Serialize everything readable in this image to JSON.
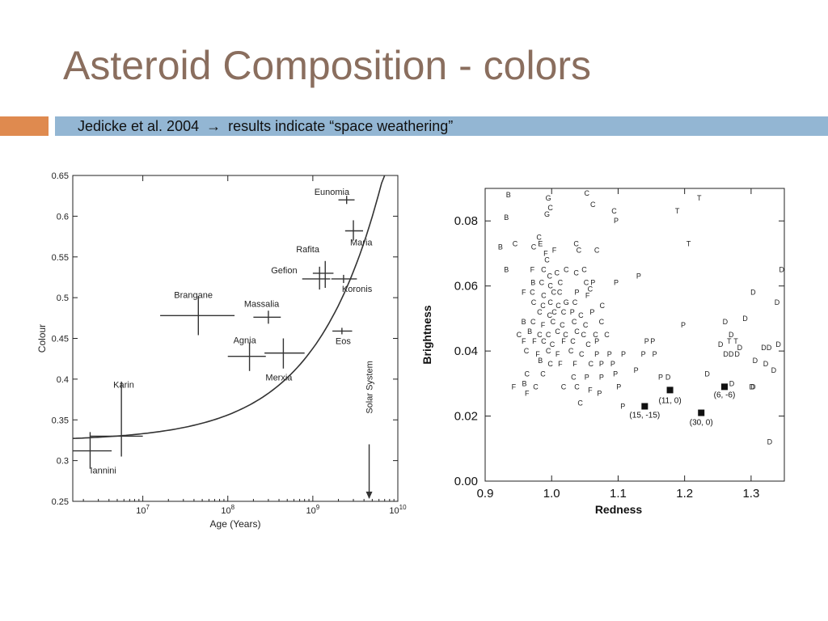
{
  "slide": {
    "title": "Asteroid Composition - colors",
    "subtitle_prefix": "Jedicke et al. 2004",
    "subtitle_arrow": "→",
    "subtitle_suffix": "results indicate “space weathering”",
    "colors": {
      "title": "#8a6e5e",
      "accent_orange": "#df8a4f",
      "accent_blue": "#93b6d3"
    }
  },
  "chart_data": [
    {
      "type": "scatter",
      "xlabel": "Age (Years)",
      "ylabel": "Colour",
      "x_scale": "log",
      "xlim": [
        1500000,
        10000000000
      ],
      "ylim": [
        0.25,
        0.65
      ],
      "x_ticks": [
        {
          "v": 10000000,
          "base": "10",
          "exp": "7"
        },
        {
          "v": 100000000,
          "base": "10",
          "exp": "8"
        },
        {
          "v": 1000000000,
          "base": "10",
          "exp": "9"
        },
        {
          "v": 10000000000,
          "base": "10",
          "exp": "10"
        }
      ],
      "y_ticks": [
        0.25,
        0.3,
        0.35,
        0.4,
        0.45,
        0.5,
        0.55,
        0.6,
        0.65
      ],
      "y_tick_labels": [
        "0.25",
        "0.3",
        "0.35",
        "0.4",
        "0.45",
        "0.5",
        "0.55",
        "0.6",
        "0.65"
      ],
      "families": [
        {
          "name": "Iannini",
          "age": 2400000,
          "colour": 0.312,
          "x_err": [
            1500000,
            4300000
          ],
          "y_err": [
            0.29,
            0.335
          ],
          "label": "Iannini"
        },
        {
          "name": "Karin",
          "age": 5600000,
          "colour": 0.33,
          "x_err": [
            2400000,
            10000000
          ],
          "y_err": [
            0.305,
            0.397
          ],
          "label": "Karin"
        },
        {
          "name": "Brangane",
          "age": 45000000,
          "colour": 0.478,
          "x_err": [
            16000000,
            120000000
          ],
          "y_err": [
            0.454,
            0.502
          ],
          "label": "Brangane"
        },
        {
          "name": "Massalia",
          "age": 300000000,
          "colour": 0.476,
          "x_err": [
            200000000,
            420000000
          ],
          "y_err": [
            0.468,
            0.484
          ],
          "label": "Massalia"
        },
        {
          "name": "Agnia",
          "age": 180000000,
          "colour": 0.428,
          "x_err": [
            100000000,
            280000000
          ],
          "y_err": [
            0.41,
            0.445
          ],
          "label": "Agnia"
        },
        {
          "name": "Merxia",
          "age": 450000000,
          "colour": 0.432,
          "x_err": [
            270000000,
            800000000
          ],
          "y_err": [
            0.413,
            0.45
          ],
          "label": "Merxia"
        },
        {
          "name": "Gefion",
          "age": 1200000000,
          "colour": 0.523,
          "x_err": [
            750000000,
            1600000000
          ],
          "y_err": [
            0.51,
            0.538
          ],
          "label": "Gefion"
        },
        {
          "name": "Rafita",
          "age": 1400000000,
          "colour": 0.53,
          "x_err": [
            1000000000,
            1750000000
          ],
          "y_err": [
            0.512,
            0.545
          ],
          "label": "Rafita"
        },
        {
          "name": "Koronis",
          "age": 2300000000,
          "colour": 0.523,
          "x_err": [
            1650000000,
            3300000000
          ],
          "y_err": [
            0.518,
            0.528
          ],
          "label": "Koronis"
        },
        {
          "name": "Maria",
          "age": 3000000000,
          "colour": 0.582,
          "x_err": [
            2400000000,
            3900000000
          ],
          "y_err": [
            0.57,
            0.595
          ],
          "label": "Maria"
        },
        {
          "name": "Eunomia",
          "age": 2500000000,
          "colour": 0.62,
          "x_err": [
            2000000000,
            3100000000
          ],
          "y_err": [
            0.615,
            0.625
          ],
          "label": "Eunomia"
        },
        {
          "name": "Eos",
          "age": 2200000000,
          "colour": 0.459,
          "x_err": [
            1700000000,
            2900000000
          ],
          "y_err": [
            0.455,
            0.463
          ],
          "label": "Eos"
        }
      ],
      "annotation": {
        "label": "Solar System",
        "age": 4600000000
      }
    },
    {
      "type": "scatter",
      "xlabel": "Redness",
      "ylabel": "Brightness",
      "xlim": [
        0.9,
        1.35
      ],
      "ylim": [
        0.0,
        0.09
      ],
      "x_ticks": [
        0.9,
        1.0,
        1.1,
        1.2,
        1.3
      ],
      "x_tick_labels": [
        "0.9",
        "1.0",
        "1.1",
        "1.2",
        "1.3"
      ],
      "y_ticks": [
        0.0,
        0.02,
        0.04,
        0.06,
        0.08
      ],
      "y_tick_labels": [
        "0.00",
        "0.02",
        "0.04",
        "0.06",
        "0.08"
      ],
      "points": [
        {
          "x": 0.935,
          "y": 0.088,
          "t": "B"
        },
        {
          "x": 0.932,
          "y": 0.081,
          "t": "B"
        },
        {
          "x": 0.923,
          "y": 0.072,
          "t": "B"
        },
        {
          "x": 0.945,
          "y": 0.073,
          "t": "C"
        },
        {
          "x": 0.932,
          "y": 0.065,
          "t": "B"
        },
        {
          "x": 0.995,
          "y": 0.087,
          "t": "G"
        },
        {
          "x": 0.998,
          "y": 0.084,
          "t": "C"
        },
        {
          "x": 0.993,
          "y": 0.082,
          "t": "G"
        },
        {
          "x": 1.053,
          "y": 0.0885,
          "t": "C"
        },
        {
          "x": 1.062,
          "y": 0.085,
          "t": "C"
        },
        {
          "x": 1.094,
          "y": 0.083,
          "t": "C"
        },
        {
          "x": 1.097,
          "y": 0.08,
          "t": "P"
        },
        {
          "x": 1.189,
          "y": 0.083,
          "t": "T"
        },
        {
          "x": 1.222,
          "y": 0.087,
          "t": "T"
        },
        {
          "x": 1.206,
          "y": 0.073,
          "t": "T"
        },
        {
          "x": 0.981,
          "y": 0.075,
          "t": "C"
        },
        {
          "x": 0.983,
          "y": 0.073,
          "t": "E"
        },
        {
          "x": 0.973,
          "y": 0.072,
          "t": "C"
        },
        {
          "x": 0.991,
          "y": 0.07,
          "t": "F"
        },
        {
          "x": 1.004,
          "y": 0.071,
          "t": "F"
        },
        {
          "x": 1.037,
          "y": 0.073,
          "t": "C"
        },
        {
          "x": 1.041,
          "y": 0.071,
          "t": "C"
        },
        {
          "x": 1.068,
          "y": 0.071,
          "t": "C"
        },
        {
          "x": 0.993,
          "y": 0.068,
          "t": "C"
        },
        {
          "x": 0.971,
          "y": 0.065,
          "t": "F"
        },
        {
          "x": 0.988,
          "y": 0.065,
          "t": "C"
        },
        {
          "x": 0.997,
          "y": 0.063,
          "t": "C"
        },
        {
          "x": 1.008,
          "y": 0.064,
          "t": "C"
        },
        {
          "x": 1.022,
          "y": 0.065,
          "t": "C"
        },
        {
          "x": 1.037,
          "y": 0.064,
          "t": "C"
        },
        {
          "x": 1.049,
          "y": 0.065,
          "t": "C"
        },
        {
          "x": 0.972,
          "y": 0.061,
          "t": "B"
        },
        {
          "x": 0.985,
          "y": 0.061,
          "t": "C"
        },
        {
          "x": 0.998,
          "y": 0.06,
          "t": "C"
        },
        {
          "x": 1.013,
          "y": 0.061,
          "t": "C"
        },
        {
          "x": 1.052,
          "y": 0.061,
          "t": "C"
        },
        {
          "x": 1.062,
          "y": 0.061,
          "t": "P"
        },
        {
          "x": 1.058,
          "y": 0.059,
          "t": "C"
        },
        {
          "x": 1.097,
          "y": 0.061,
          "t": "P"
        },
        {
          "x": 1.131,
          "y": 0.063,
          "t": "P"
        },
        {
          "x": 0.958,
          "y": 0.058,
          "t": "F"
        },
        {
          "x": 0.971,
          "y": 0.058,
          "t": "C"
        },
        {
          "x": 0.988,
          "y": 0.057,
          "t": "C"
        },
        {
          "x": 1.003,
          "y": 0.058,
          "t": "C"
        },
        {
          "x": 1.012,
          "y": 0.058,
          "t": "C"
        },
        {
          "x": 1.038,
          "y": 0.058,
          "t": "P"
        },
        {
          "x": 1.054,
          "y": 0.057,
          "t": "F"
        },
        {
          "x": 0.973,
          "y": 0.055,
          "t": "C"
        },
        {
          "x": 0.987,
          "y": 0.054,
          "t": "C"
        },
        {
          "x": 0.998,
          "y": 0.055,
          "t": "C"
        },
        {
          "x": 1.01,
          "y": 0.054,
          "t": "C"
        },
        {
          "x": 1.022,
          "y": 0.055,
          "t": "G"
        },
        {
          "x": 1.035,
          "y": 0.055,
          "t": "C"
        },
        {
          "x": 1.076,
          "y": 0.054,
          "t": "C"
        },
        {
          "x": 0.982,
          "y": 0.052,
          "t": "C"
        },
        {
          "x": 0.997,
          "y": 0.051,
          "t": "C"
        },
        {
          "x": 1.004,
          "y": 0.052,
          "t": "C"
        },
        {
          "x": 1.018,
          "y": 0.052,
          "t": "C"
        },
        {
          "x": 1.031,
          "y": 0.052,
          "t": "P"
        },
        {
          "x": 1.044,
          "y": 0.051,
          "t": "C"
        },
        {
          "x": 1.061,
          "y": 0.052,
          "t": "P"
        },
        {
          "x": 0.958,
          "y": 0.049,
          "t": "B"
        },
        {
          "x": 0.972,
          "y": 0.049,
          "t": "C"
        },
        {
          "x": 0.987,
          "y": 0.048,
          "t": "F"
        },
        {
          "x": 1.002,
          "y": 0.049,
          "t": "C"
        },
        {
          "x": 1.016,
          "y": 0.048,
          "t": "C"
        },
        {
          "x": 1.034,
          "y": 0.049,
          "t": "C"
        },
        {
          "x": 1.051,
          "y": 0.048,
          "t": "C"
        },
        {
          "x": 1.075,
          "y": 0.049,
          "t": "C"
        },
        {
          "x": 0.951,
          "y": 0.045,
          "t": "C"
        },
        {
          "x": 0.967,
          "y": 0.046,
          "t": "B"
        },
        {
          "x": 0.982,
          "y": 0.045,
          "t": "C"
        },
        {
          "x": 0.995,
          "y": 0.045,
          "t": "C"
        },
        {
          "x": 1.009,
          "y": 0.046,
          "t": "C"
        },
        {
          "x": 1.021,
          "y": 0.045,
          "t": "C"
        },
        {
          "x": 1.038,
          "y": 0.046,
          "t": "C"
        },
        {
          "x": 1.048,
          "y": 0.045,
          "t": "C"
        },
        {
          "x": 1.066,
          "y": 0.045,
          "t": "C"
        },
        {
          "x": 1.083,
          "y": 0.045,
          "t": "C"
        },
        {
          "x": 0.958,
          "y": 0.043,
          "t": "F"
        },
        {
          "x": 0.974,
          "y": 0.043,
          "t": "F"
        },
        {
          "x": 0.988,
          "y": 0.043,
          "t": "C"
        },
        {
          "x": 1.001,
          "y": 0.042,
          "t": "C"
        },
        {
          "x": 1.018,
          "y": 0.043,
          "t": "F"
        },
        {
          "x": 1.032,
          "y": 0.043,
          "t": "C"
        },
        {
          "x": 1.055,
          "y": 0.042,
          "t": "C"
        },
        {
          "x": 1.068,
          "y": 0.043,
          "t": "P"
        },
        {
          "x": 0.962,
          "y": 0.04,
          "t": "C"
        },
        {
          "x": 0.979,
          "y": 0.039,
          "t": "F"
        },
        {
          "x": 0.995,
          "y": 0.04,
          "t": "C"
        },
        {
          "x": 1.009,
          "y": 0.039,
          "t": "F"
        },
        {
          "x": 1.029,
          "y": 0.04,
          "t": "C"
        },
        {
          "x": 1.045,
          "y": 0.039,
          "t": "C"
        },
        {
          "x": 1.068,
          "y": 0.039,
          "t": "P"
        },
        {
          "x": 1.087,
          "y": 0.039,
          "t": "P"
        },
        {
          "x": 1.108,
          "y": 0.039,
          "t": "P"
        },
        {
          "x": 1.138,
          "y": 0.039,
          "t": "P"
        },
        {
          "x": 1.155,
          "y": 0.039,
          "t": "P"
        },
        {
          "x": 0.983,
          "y": 0.037,
          "t": "B"
        },
        {
          "x": 0.998,
          "y": 0.036,
          "t": "C"
        },
        {
          "x": 1.013,
          "y": 0.036,
          "t": "F"
        },
        {
          "x": 1.035,
          "y": 0.036,
          "t": "F"
        },
        {
          "x": 1.059,
          "y": 0.036,
          "t": "C"
        },
        {
          "x": 1.075,
          "y": 0.036,
          "t": "P"
        },
        {
          "x": 1.092,
          "y": 0.036,
          "t": "P"
        },
        {
          "x": 0.963,
          "y": 0.033,
          "t": "C"
        },
        {
          "x": 0.987,
          "y": 0.033,
          "t": "C"
        },
        {
          "x": 1.033,
          "y": 0.032,
          "t": "C"
        },
        {
          "x": 1.053,
          "y": 0.032,
          "t": "P"
        },
        {
          "x": 1.075,
          "y": 0.032,
          "t": "P"
        },
        {
          "x": 1.096,
          "y": 0.033,
          "t": "P"
        },
        {
          "x": 1.127,
          "y": 0.034,
          "t": "P"
        },
        {
          "x": 1.164,
          "y": 0.032,
          "t": "P"
        },
        {
          "x": 1.175,
          "y": 0.032,
          "t": "D"
        },
        {
          "x": 0.943,
          "y": 0.029,
          "t": "F"
        },
        {
          "x": 0.959,
          "y": 0.03,
          "t": "B"
        },
        {
          "x": 0.976,
          "y": 0.029,
          "t": "C"
        },
        {
          "x": 1.018,
          "y": 0.029,
          "t": "C"
        },
        {
          "x": 1.038,
          "y": 0.029,
          "t": "C"
        },
        {
          "x": 0.963,
          "y": 0.027,
          "t": "F"
        },
        {
          "x": 1.058,
          "y": 0.028,
          "t": "F"
        },
        {
          "x": 1.072,
          "y": 0.027,
          "t": "P"
        },
        {
          "x": 1.101,
          "y": 0.029,
          "t": "P"
        },
        {
          "x": 1.043,
          "y": 0.024,
          "t": "C"
        },
        {
          "x": 1.107,
          "y": 0.023,
          "t": "P"
        },
        {
          "x": 1.143,
          "y": 0.043,
          "t": "P"
        },
        {
          "x": 1.152,
          "y": 0.043,
          "t": "P"
        },
        {
          "x": 1.198,
          "y": 0.048,
          "t": "P"
        },
        {
          "x": 1.261,
          "y": 0.049,
          "t": "D"
        },
        {
          "x": 1.27,
          "y": 0.045,
          "t": "D"
        },
        {
          "x": 1.291,
          "y": 0.05,
          "t": "D"
        },
        {
          "x": 1.303,
          "y": 0.058,
          "t": "D"
        },
        {
          "x": 1.339,
          "y": 0.055,
          "t": "D"
        },
        {
          "x": 1.346,
          "y": 0.065,
          "t": "D"
        },
        {
          "x": 1.254,
          "y": 0.042,
          "t": "D"
        },
        {
          "x": 1.267,
          "y": 0.043,
          "t": "T"
        },
        {
          "x": 1.277,
          "y": 0.043,
          "t": "T"
        },
        {
          "x": 1.283,
          "y": 0.041,
          "t": "D"
        },
        {
          "x": 1.262,
          "y": 0.039,
          "t": "D"
        },
        {
          "x": 1.27,
          "y": 0.039,
          "t": "D"
        },
        {
          "x": 1.279,
          "y": 0.039,
          "t": "D"
        },
        {
          "x": 1.319,
          "y": 0.041,
          "t": "D"
        },
        {
          "x": 1.327,
          "y": 0.041,
          "t": "D"
        },
        {
          "x": 1.341,
          "y": 0.042,
          "t": "D"
        },
        {
          "x": 1.306,
          "y": 0.037,
          "t": "D"
        },
        {
          "x": 1.322,
          "y": 0.036,
          "t": "D"
        },
        {
          "x": 1.334,
          "y": 0.034,
          "t": "D"
        },
        {
          "x": 1.234,
          "y": 0.033,
          "t": "D"
        },
        {
          "x": 1.301,
          "y": 0.029,
          "t": "D"
        },
        {
          "x": 1.303,
          "y": 0.029,
          "t": "D"
        },
        {
          "x": 1.271,
          "y": 0.03,
          "t": "D"
        },
        {
          "x": 1.328,
          "y": 0.012,
          "t": "D"
        }
      ],
      "markers": [
        {
          "x": 1.178,
          "y": 0.028,
          "label": "(11, 0)"
        },
        {
          "x": 1.14,
          "y": 0.023,
          "label": "(15, -15)"
        },
        {
          "x": 1.225,
          "y": 0.021,
          "label": "(30, 0)"
        },
        {
          "x": 1.26,
          "y": 0.029,
          "label": "(6, -6)"
        }
      ]
    }
  ]
}
